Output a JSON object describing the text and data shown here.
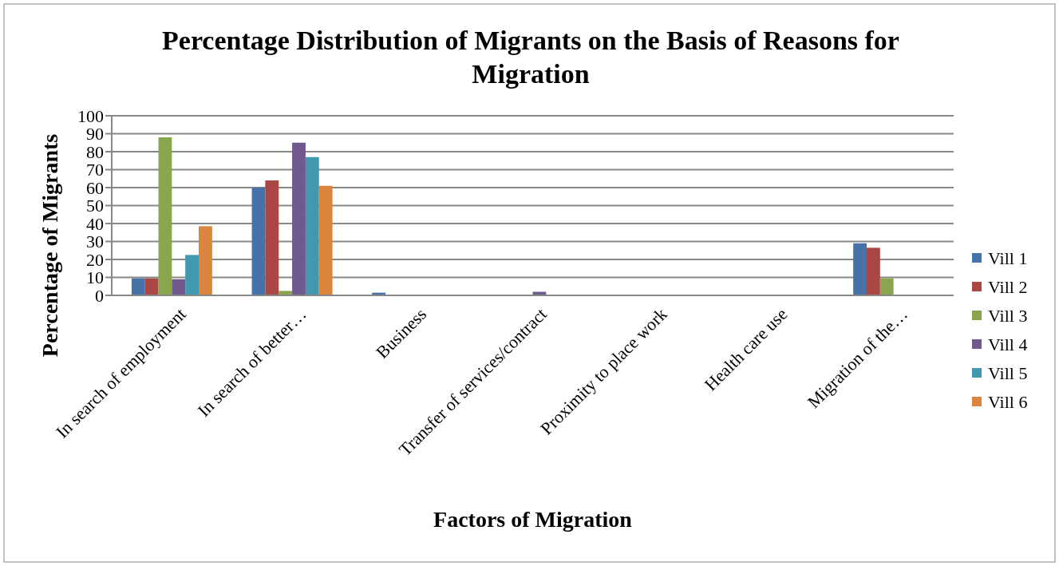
{
  "chart_data": {
    "type": "bar",
    "title": "Percentage Distribution of Migrants on the Basis of Reasons for Migration",
    "xlabel": "Factors of Migration",
    "ylabel": "Percentage of Migrants",
    "categories": [
      "In search of employment",
      "In search of better…",
      "Business",
      "Transfer of services/contract",
      "Proximity to place work",
      "Health care use",
      "Migration of the…"
    ],
    "series": [
      {
        "name": "Vill 1",
        "color": "#4572a7",
        "values": [
          9.5,
          60,
          1.5,
          0,
          0,
          0,
          29
        ]
      },
      {
        "name": "Vill 2",
        "color": "#aa4643",
        "values": [
          9.5,
          64,
          0,
          0,
          0,
          0,
          26.5
        ]
      },
      {
        "name": "Vill 3",
        "color": "#89a54e",
        "values": [
          88,
          2.5,
          0,
          0,
          0,
          0,
          9.5
        ]
      },
      {
        "name": "Vill 4",
        "color": "#71588f",
        "values": [
          9,
          85,
          0,
          2,
          0,
          0,
          0
        ]
      },
      {
        "name": "Vill 5",
        "color": "#4198af",
        "values": [
          22.5,
          77,
          0,
          0,
          0,
          0,
          0
        ]
      },
      {
        "name": "Vill 6",
        "color": "#db843d",
        "values": [
          38.5,
          61,
          0,
          0,
          0,
          0,
          0
        ]
      }
    ],
    "ylim": [
      0,
      100
    ],
    "yticks": [
      0,
      10,
      20,
      30,
      40,
      50,
      60,
      70,
      80,
      90,
      100
    ],
    "grid": "y",
    "legend": "right"
  }
}
